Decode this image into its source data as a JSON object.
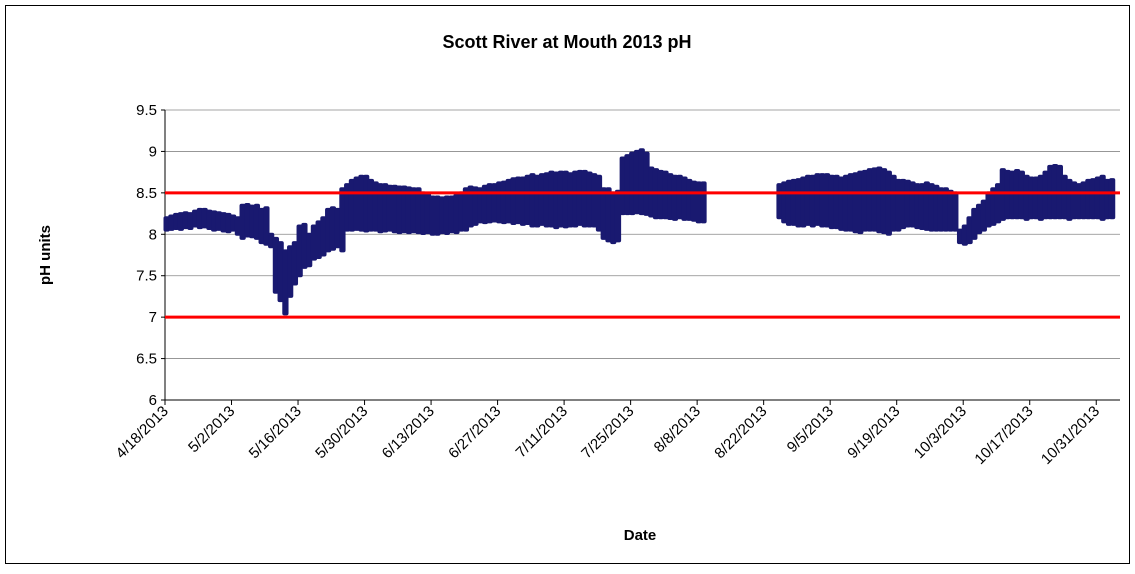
{
  "chart_data": {
    "type": "scatter",
    "title": "Scott River at Mouth 2013 pH",
    "x_label": "Date",
    "y_label": "pH units",
    "color": "#191970",
    "hline_color": "#ff0000",
    "hlines": [
      7,
      8.5
    ],
    "grid": true,
    "ylim": [
      6,
      9.5
    ],
    "yticks": [
      6,
      6.5,
      7,
      7.5,
      8,
      8.5,
      9,
      9.5
    ],
    "xlim": [
      "2013-04-18",
      "2013-11-05"
    ],
    "xticks": [
      {
        "value": "2013-04-18",
        "label": "4/18/2013"
      },
      {
        "value": "2013-05-02",
        "label": "5/2/2013"
      },
      {
        "value": "2013-05-16",
        "label": "5/16/2013"
      },
      {
        "value": "2013-05-30",
        "label": "5/30/2013"
      },
      {
        "value": "2013-06-13",
        "label": "6/13/2013"
      },
      {
        "value": "2013-06-27",
        "label": "6/27/2013"
      },
      {
        "value": "2013-07-11",
        "label": "7/11/2013"
      },
      {
        "value": "2013-07-25",
        "label": "7/25/2013"
      },
      {
        "value": "2013-08-08",
        "label": "8/8/2013"
      },
      {
        "value": "2013-08-22",
        "label": "8/22/2013"
      },
      {
        "value": "2013-09-05",
        "label": "9/5/2013"
      },
      {
        "value": "2013-09-19",
        "label": "9/19/2013"
      },
      {
        "value": "2013-10-03",
        "label": "10/3/2013"
      },
      {
        "value": "2013-10-17",
        "label": "10/17/2013"
      },
      {
        "value": "2013-10-31",
        "label": "10/31/2013"
      }
    ],
    "x": [
      "2013-04-18",
      "2013-04-19",
      "2013-04-20",
      "2013-04-21",
      "2013-04-22",
      "2013-04-23",
      "2013-04-24",
      "2013-04-25",
      "2013-04-26",
      "2013-04-27",
      "2013-04-28",
      "2013-04-29",
      "2013-04-30",
      "2013-05-01",
      "2013-05-02",
      "2013-05-03",
      "2013-05-04",
      "2013-05-05",
      "2013-05-06",
      "2013-05-07",
      "2013-05-08",
      "2013-05-09",
      "2013-05-10",
      "2013-05-11",
      "2013-05-12",
      "2013-05-13",
      "2013-05-14",
      "2013-05-15",
      "2013-05-16",
      "2013-05-17",
      "2013-05-18",
      "2013-05-19",
      "2013-05-20",
      "2013-05-21",
      "2013-05-22",
      "2013-05-23",
      "2013-05-24",
      "2013-05-25",
      "2013-05-26",
      "2013-05-27",
      "2013-05-28",
      "2013-05-29",
      "2013-05-30",
      "2013-05-31",
      "2013-06-01",
      "2013-06-02",
      "2013-06-03",
      "2013-06-04",
      "2013-06-05",
      "2013-06-06",
      "2013-06-07",
      "2013-06-08",
      "2013-06-09",
      "2013-06-10",
      "2013-06-11",
      "2013-06-12",
      "2013-06-13",
      "2013-06-14",
      "2013-06-15",
      "2013-06-16",
      "2013-06-17",
      "2013-06-18",
      "2013-06-19",
      "2013-06-20",
      "2013-06-21",
      "2013-06-22",
      "2013-06-23",
      "2013-06-24",
      "2013-06-25",
      "2013-06-26",
      "2013-06-27",
      "2013-06-28",
      "2013-06-29",
      "2013-06-30",
      "2013-07-01",
      "2013-07-02",
      "2013-07-03",
      "2013-07-04",
      "2013-07-05",
      "2013-07-06",
      "2013-07-07",
      "2013-07-08",
      "2013-07-09",
      "2013-07-10",
      "2013-07-11",
      "2013-07-12",
      "2013-07-13",
      "2013-07-14",
      "2013-07-15",
      "2013-07-16",
      "2013-07-17",
      "2013-07-18",
      "2013-07-19",
      "2013-07-20",
      "2013-07-21",
      "2013-07-22",
      "2013-07-23",
      "2013-07-24",
      "2013-07-25",
      "2013-07-26",
      "2013-07-27",
      "2013-07-28",
      "2013-07-29",
      "2013-07-30",
      "2013-07-31",
      "2013-08-01",
      "2013-08-02",
      "2013-08-03",
      "2013-08-04",
      "2013-08-05",
      "2013-08-06",
      "2013-08-07",
      "2013-08-08",
      "2013-08-09",
      "2013-08-10",
      "2013-08-11",
      "2013-08-12",
      "2013-08-13",
      "2013-08-14",
      "2013-08-15",
      "2013-08-16",
      "2013-08-17",
      "2013-08-18",
      "2013-08-19",
      "2013-08-20",
      "2013-08-21",
      "2013-08-22",
      "2013-08-23",
      "2013-08-24",
      "2013-08-25",
      "2013-08-26",
      "2013-08-27",
      "2013-08-28",
      "2013-08-29",
      "2013-08-30",
      "2013-08-31",
      "2013-09-01",
      "2013-09-02",
      "2013-09-03",
      "2013-09-04",
      "2013-09-05",
      "2013-09-06",
      "2013-09-07",
      "2013-09-08",
      "2013-09-09",
      "2013-09-10",
      "2013-09-11",
      "2013-09-12",
      "2013-09-13",
      "2013-09-14",
      "2013-09-15",
      "2013-09-16",
      "2013-09-17",
      "2013-09-18",
      "2013-09-19",
      "2013-09-20",
      "2013-09-21",
      "2013-09-22",
      "2013-09-23",
      "2013-09-24",
      "2013-09-25",
      "2013-09-26",
      "2013-09-27",
      "2013-09-28",
      "2013-09-29",
      "2013-09-30",
      "2013-10-01",
      "2013-10-02",
      "2013-10-03",
      "2013-10-04",
      "2013-10-05",
      "2013-10-06",
      "2013-10-07",
      "2013-10-08",
      "2013-10-09",
      "2013-10-10",
      "2013-10-11",
      "2013-10-12",
      "2013-10-13",
      "2013-10-14",
      "2013-10-15",
      "2013-10-16",
      "2013-10-17",
      "2013-10-18",
      "2013-10-19",
      "2013-10-20",
      "2013-10-21",
      "2013-10-22",
      "2013-10-23",
      "2013-10-24",
      "2013-10-25",
      "2013-10-26",
      "2013-10-27",
      "2013-10-28",
      "2013-10-29",
      "2013-10-30",
      "2013-10-31",
      "2013-11-01",
      "2013-11-02",
      "2013-11-03"
    ],
    "ymin": [
      8.05,
      8.06,
      8.07,
      8.06,
      8.08,
      8.07,
      8.1,
      8.08,
      8.09,
      8.07,
      8.05,
      8.06,
      8.04,
      8.03,
      8.05,
      8.0,
      7.95,
      7.98,
      7.97,
      7.95,
      7.9,
      7.88,
      7.85,
      7.3,
      7.2,
      7.04,
      7.25,
      7.4,
      7.5,
      7.6,
      7.62,
      7.7,
      7.72,
      7.75,
      7.8,
      7.82,
      7.85,
      7.8,
      8.05,
      8.05,
      8.06,
      8.05,
      8.04,
      8.05,
      8.05,
      8.03,
      8.04,
      8.05,
      8.03,
      8.02,
      8.03,
      8.02,
      8.03,
      8.02,
      8.01,
      8.02,
      8.0,
      8.0,
      8.02,
      8.01,
      8.03,
      8.02,
      8.05,
      8.05,
      8.1,
      8.12,
      8.15,
      8.14,
      8.15,
      8.16,
      8.15,
      8.14,
      8.15,
      8.13,
      8.14,
      8.12,
      8.13,
      8.1,
      8.1,
      8.12,
      8.1,
      8.1,
      8.08,
      8.1,
      8.09,
      8.1,
      8.1,
      8.12,
      8.1,
      8.1,
      8.1,
      8.05,
      7.95,
      7.92,
      7.9,
      7.92,
      8.25,
      8.25,
      8.25,
      8.26,
      8.25,
      8.24,
      8.22,
      8.2,
      8.2,
      8.2,
      8.19,
      8.18,
      8.2,
      8.18,
      8.18,
      8.17,
      8.15,
      8.15,
      null,
      null,
      null,
      null,
      null,
      null,
      null,
      null,
      null,
      null,
      null,
      null,
      null,
      null,
      null,
      8.2,
      8.15,
      8.12,
      8.12,
      8.1,
      8.1,
      8.12,
      8.1,
      8.12,
      8.1,
      8.1,
      8.08,
      8.08,
      8.06,
      8.05,
      8.05,
      8.03,
      8.02,
      8.05,
      8.05,
      8.05,
      8.03,
      8.02,
      8.0,
      8.05,
      8.05,
      8.08,
      8.1,
      8.1,
      8.08,
      8.07,
      8.06,
      8.05,
      8.05,
      8.05,
      8.05,
      8.05,
      8.05,
      7.9,
      7.88,
      7.9,
      7.95,
      8.02,
      8.05,
      8.1,
      8.12,
      8.15,
      8.18,
      8.2,
      8.2,
      8.2,
      8.2,
      8.18,
      8.2,
      8.2,
      8.18,
      8.2,
      8.2,
      8.2,
      8.2,
      8.2,
      8.18,
      8.2,
      8.2,
      8.2,
      8.2,
      8.2,
      8.2,
      8.18,
      8.2,
      8.2
    ],
    "ymax": [
      8.2,
      8.22,
      8.24,
      8.25,
      8.26,
      8.25,
      8.28,
      8.3,
      8.3,
      8.28,
      8.27,
      8.26,
      8.25,
      8.24,
      8.22,
      8.2,
      8.35,
      8.36,
      8.34,
      8.35,
      8.3,
      8.32,
      8.0,
      7.95,
      7.9,
      7.8,
      7.85,
      7.9,
      8.1,
      8.12,
      8.0,
      8.1,
      8.15,
      8.2,
      8.3,
      8.32,
      8.3,
      8.55,
      8.6,
      8.65,
      8.68,
      8.7,
      8.7,
      8.65,
      8.62,
      8.6,
      8.6,
      8.58,
      8.58,
      8.57,
      8.57,
      8.56,
      8.55,
      8.55,
      8.5,
      8.48,
      8.45,
      8.45,
      8.44,
      8.45,
      8.45,
      8.47,
      8.5,
      8.55,
      8.57,
      8.56,
      8.55,
      8.58,
      8.6,
      8.6,
      8.62,
      8.63,
      8.65,
      8.67,
      8.68,
      8.68,
      8.7,
      8.72,
      8.7,
      8.72,
      8.73,
      8.75,
      8.74,
      8.75,
      8.75,
      8.73,
      8.75,
      8.76,
      8.76,
      8.74,
      8.72,
      8.7,
      8.55,
      8.55,
      8.5,
      8.52,
      8.92,
      8.95,
      8.98,
      9.0,
      9.02,
      8.98,
      8.8,
      8.78,
      8.76,
      8.75,
      8.72,
      8.7,
      8.7,
      8.68,
      8.65,
      8.63,
      8.62,
      8.62,
      null,
      null,
      null,
      null,
      null,
      null,
      null,
      null,
      null,
      null,
      null,
      null,
      null,
      null,
      null,
      8.6,
      8.62,
      8.64,
      8.65,
      8.66,
      8.68,
      8.7,
      8.7,
      8.72,
      8.72,
      8.72,
      8.7,
      8.7,
      8.68,
      8.7,
      8.72,
      8.73,
      8.75,
      8.76,
      8.78,
      8.79,
      8.8,
      8.78,
      8.75,
      8.7,
      8.65,
      8.65,
      8.64,
      8.62,
      8.6,
      8.6,
      8.62,
      8.6,
      8.58,
      8.55,
      8.55,
      8.52,
      8.5,
      8.05,
      8.1,
      8.2,
      8.3,
      8.35,
      8.4,
      8.5,
      8.55,
      8.6,
      8.78,
      8.76,
      8.75,
      8.77,
      8.75,
      8.7,
      8.68,
      8.68,
      8.7,
      8.75,
      8.82,
      8.83,
      8.82,
      8.7,
      8.65,
      8.62,
      8.6,
      8.62,
      8.65,
      8.66,
      8.68,
      8.7,
      8.65,
      8.66
    ]
  }
}
